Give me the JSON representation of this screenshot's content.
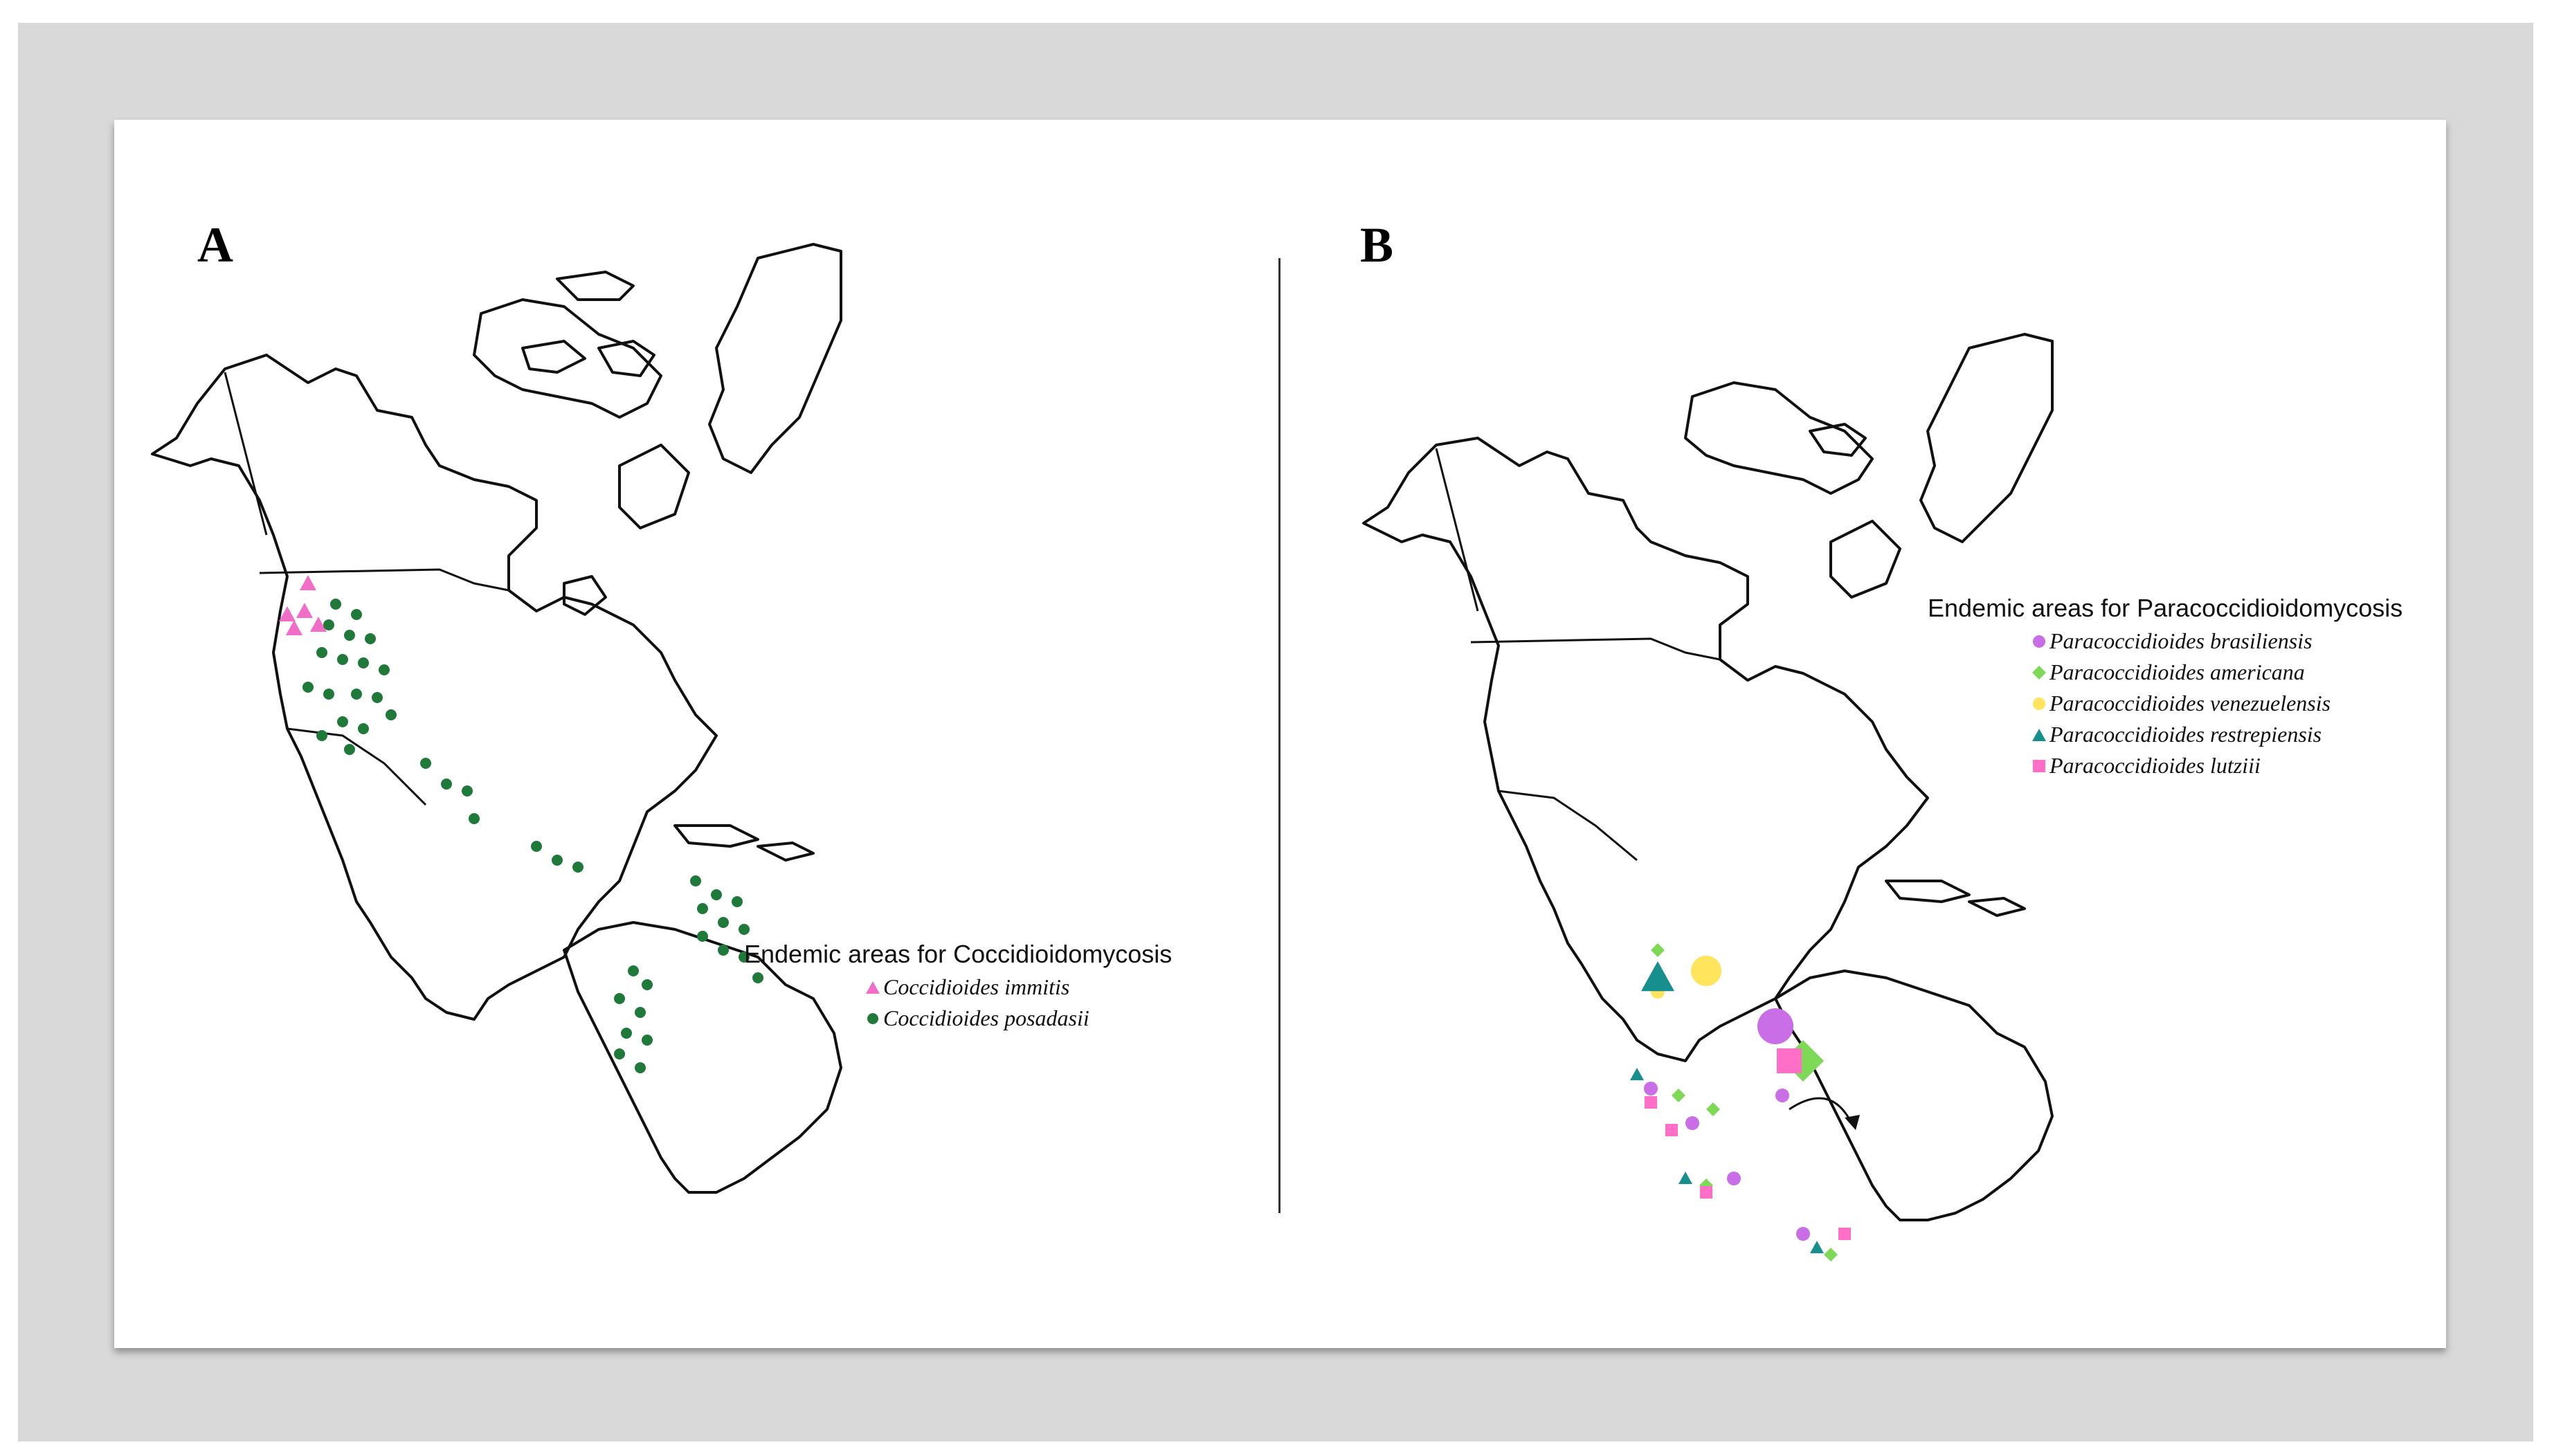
{
  "panels": [
    {
      "label": "A",
      "legend": {
        "title": "Endemic areas for Coccidioidomycosis",
        "items": [
          {
            "shape": "triangle",
            "color": "#f06ec8",
            "name": "Coccidioides immitis"
          },
          {
            "shape": "circle",
            "color": "#1f7a3a",
            "name": "Coccidioides posadasii"
          }
        ]
      }
    },
    {
      "label": "B",
      "legend": {
        "title": "Endemic areas for Paracoccidioidomycosis",
        "items": [
          {
            "shape": "circle",
            "color": "#c96ee6",
            "name": "Paracoccidioides brasiliensis"
          },
          {
            "shape": "diamond",
            "color": "#7ed957",
            "name": "Paracoccidioides americana"
          },
          {
            "shape": "circle",
            "color": "#ffe45c",
            "name": "Paracoccidioides venezuelensis"
          },
          {
            "shape": "triangle",
            "color": "#178f8f",
            "name": "Paracoccidioides restrepiensis"
          },
          {
            "shape": "square",
            "color": "#ff6ec7",
            "name": "Paracoccidioides lutziii"
          }
        ]
      }
    }
  ]
}
